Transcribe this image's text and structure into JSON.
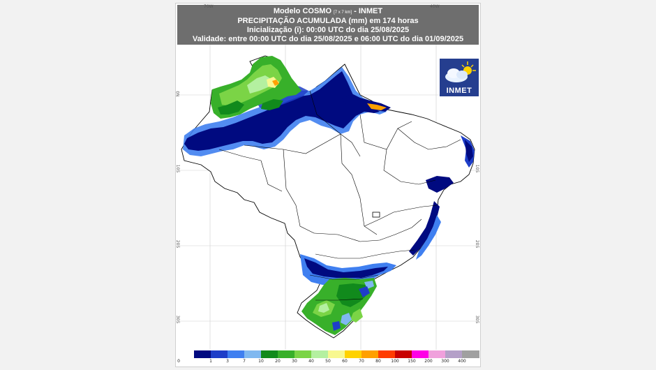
{
  "header": {
    "title": "Modelo COSMO",
    "resolution": "[7 x 7 km]",
    "title_suffix": "- INMET",
    "variable": "PRECIPITAÇÃO ACUMULADA (mm) em 174 horas",
    "init": "Inicialização (i): 00:00 UTC do dia 25/08/2025",
    "validity": "Validade: entre 00:00 UTC do dia 25/08/2025 e 06:00 UTC do dia 01/09/2025"
  },
  "map": {
    "lon_labels": [
      "70W",
      "40W"
    ],
    "lat_labels": [
      "0N",
      "10S",
      "20S",
      "30S"
    ],
    "background": "#ffffff",
    "boundary_color": "#000000"
  },
  "logo": {
    "text": "INMET",
    "icon": "cloud-sun-icon",
    "color": "#253e8f"
  },
  "legend": {
    "unit": "mm",
    "labels": [
      "0",
      "1",
      "3",
      "7",
      "10",
      "20",
      "30",
      "40",
      "50",
      "60",
      "70",
      "80",
      "100",
      "150",
      "200",
      "300",
      "400"
    ],
    "colors": [
      "#ffffff",
      "#000a80",
      "#1e3ec8",
      "#3f7ff0",
      "#7fb8f0",
      "#118a1c",
      "#38b02a",
      "#7bd446",
      "#b4f0a0",
      "#f8f890",
      "#ffd200",
      "#ffa000",
      "#ff3c00",
      "#c80000",
      "#ff00e6",
      "#f0a0dc",
      "#b4a0c8",
      "#a0a0a0"
    ]
  }
}
